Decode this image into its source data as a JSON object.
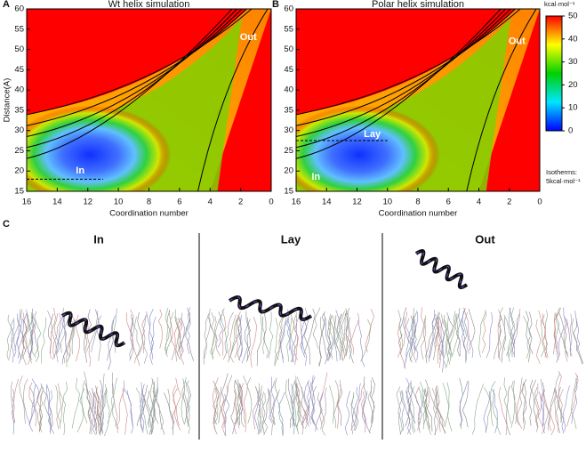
{
  "chart_data": [
    {
      "type": "heatmap",
      "panel": "A",
      "title": "Wt helix simulation",
      "xlabel": "Coordination number",
      "ylabel": "Distance(A)",
      "xlim": [
        16,
        0
      ],
      "ylim": [
        15,
        60
      ],
      "xticks": [
        16,
        14,
        12,
        10,
        8,
        6,
        4,
        2,
        0
      ],
      "yticks": [
        15,
        20,
        25,
        30,
        35,
        40,
        45,
        50,
        55,
        60
      ],
      "annotations": [
        {
          "text": "In",
          "x": 12.5,
          "y": 20
        },
        {
          "text": "Out",
          "x": 1.5,
          "y": 53
        }
      ],
      "reference_line": {
        "y": 18,
        "x": [
          16,
          11
        ]
      }
    },
    {
      "type": "heatmap",
      "panel": "B",
      "title": "Polar helix simulation",
      "xlabel": "Coordination number",
      "xlim": [
        16,
        0
      ],
      "ylim": [
        15,
        60
      ],
      "xticks": [
        16,
        14,
        12,
        10,
        8,
        6,
        4,
        2,
        0
      ],
      "yticks": [
        15,
        20,
        25,
        30,
        35,
        40,
        45,
        50,
        55,
        60
      ],
      "annotations": [
        {
          "text": "In",
          "x": 14.7,
          "y": 18.5
        },
        {
          "text": "Lay",
          "x": 11,
          "y": 29
        },
        {
          "text": "Out",
          "x": 1.5,
          "y": 52
        }
      ],
      "reference_line": {
        "y": 27.5,
        "x": [
          16,
          10
        ]
      }
    }
  ],
  "colorbar": {
    "unit": "kcal·mol⁻¹",
    "lim": [
      0,
      50
    ],
    "ticks": [
      0,
      10,
      20,
      30,
      40,
      50
    ],
    "colors": [
      "#0000ff",
      "#00e5ff",
      "#00d000",
      "#ffff00",
      "#ff0000"
    ],
    "note": [
      "Isotherms:",
      "5kcal·mol⁻¹"
    ]
  },
  "panel_c": {
    "letter": "C",
    "snapshots": [
      "In",
      "Lay",
      "Out"
    ]
  }
}
